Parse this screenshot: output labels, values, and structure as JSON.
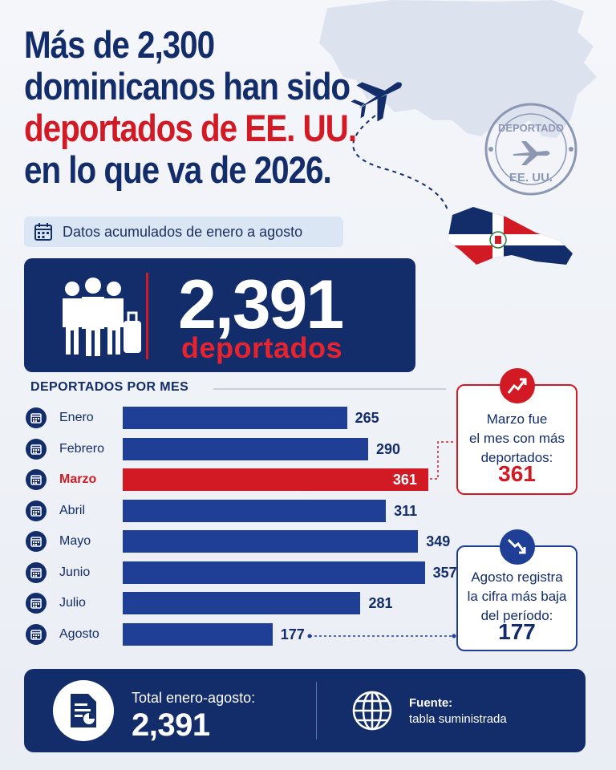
{
  "header": {
    "title_line1": "Más de 2,300",
    "title_line2": "dominicanos han sido",
    "title_line3": "deportados de EE. UU.",
    "title_line4": "en lo que va de 2026.",
    "subtitle": "Datos acumulados de enero a agosto"
  },
  "summary": {
    "total": "2,391",
    "label": "deportados"
  },
  "stamp": {
    "line1": "DEPORTADO",
    "line2": "EE. UU."
  },
  "colors": {
    "navy": "#132d6b",
    "blue": "#1f3e96",
    "red": "#d11a24",
    "white": "#ffffff"
  },
  "chart_data": {
    "type": "bar",
    "orientation": "horizontal",
    "title": "DEPORTADOS POR MES",
    "categories": [
      "Enero",
      "Febrero",
      "Marzo",
      "Abril",
      "Mayo",
      "Junio",
      "Julio",
      "Agosto"
    ],
    "values": [
      265,
      290,
      361,
      311,
      349,
      357,
      281,
      177
    ],
    "highlight": "Marzo",
    "grid": false
  },
  "callouts": {
    "max": {
      "line1": "Marzo fue",
      "line2": "el mes con más",
      "line3": "deportados:",
      "value": "361"
    },
    "min": {
      "line1": "Agosto registra",
      "line2": "la cifra más baja",
      "line3": "del período:",
      "value": "177"
    }
  },
  "footer": {
    "total_label": "Total enero-agosto:",
    "total_value": "2,391",
    "source_label": "Fuente:",
    "source_value": "tabla suministrada"
  }
}
